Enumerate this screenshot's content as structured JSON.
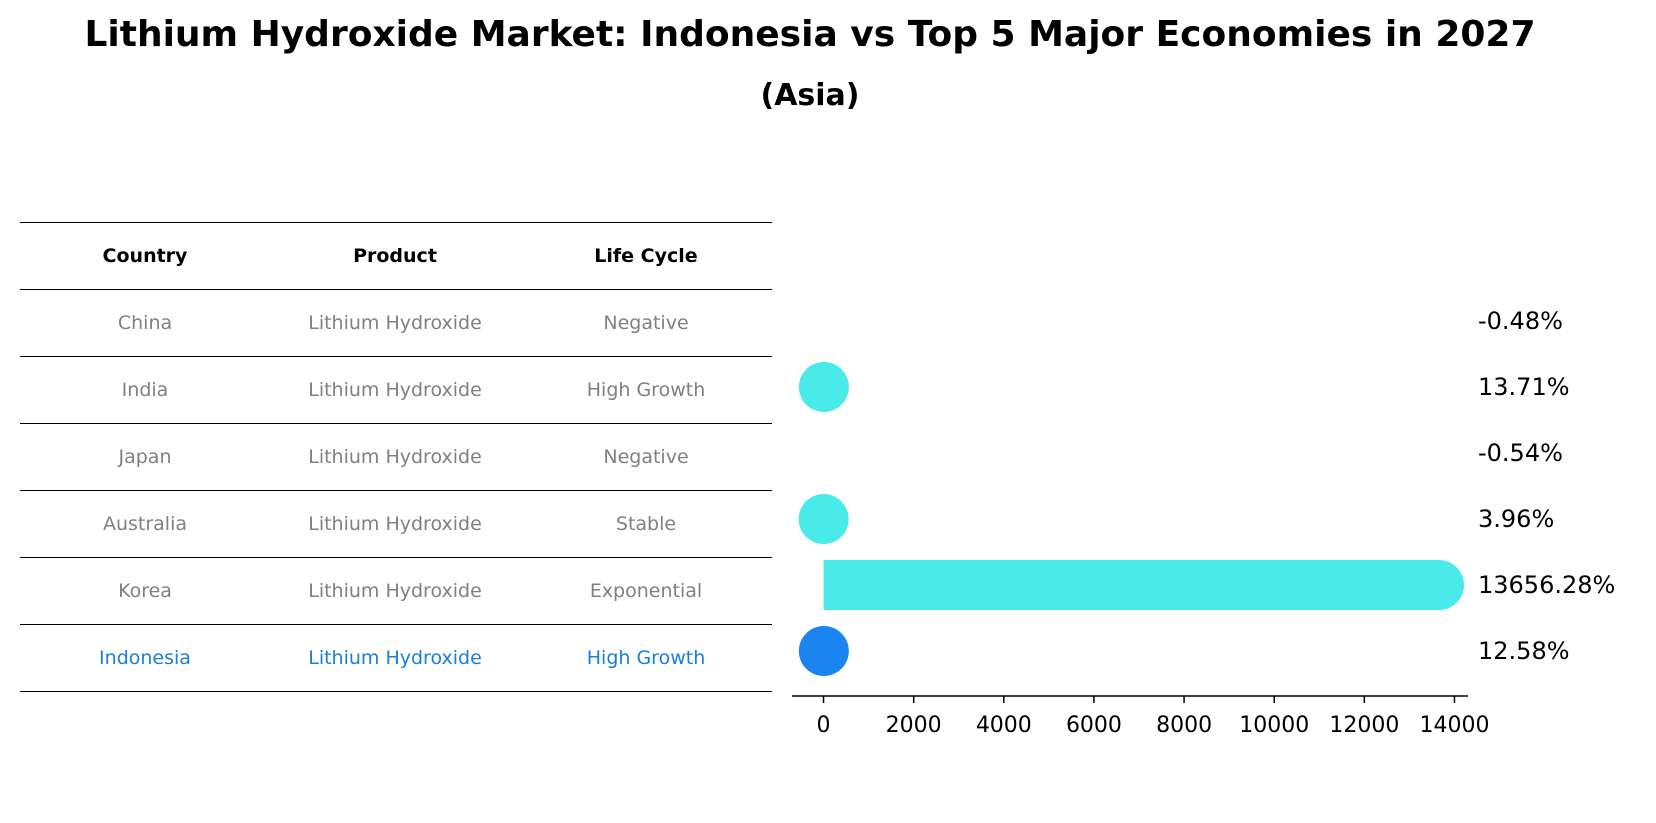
{
  "title": "Lithium Hydroxide Market: Indonesia vs Top 5 Major Economies in 2027",
  "subtitle": "(Asia)",
  "table": {
    "headers": [
      "Country",
      "Product",
      "Life Cycle"
    ],
    "rows": [
      [
        "China",
        "Lithium Hydroxide",
        "Negative"
      ],
      [
        "India",
        "Lithium Hydroxide",
        "High Growth"
      ],
      [
        "Japan",
        "Lithium Hydroxide",
        "Negative"
      ],
      [
        "Australia",
        "Lithium Hydroxide",
        "Stable"
      ],
      [
        "Korea",
        "Lithium Hydroxide",
        "Exponential"
      ],
      [
        "Indonesia",
        "Lithium Hydroxide",
        "High Growth"
      ]
    ],
    "highlight_row": 5
  },
  "colors": {
    "bar": "#4aeaea",
    "highlight": "#1a84f0",
    "table_text": "#808080",
    "highlight_text": "#1a7fd6"
  },
  "chart_data": {
    "type": "bar",
    "orientation": "horizontal",
    "categories": [
      "China",
      "India",
      "Japan",
      "Australia",
      "Korea",
      "Indonesia"
    ],
    "values": [
      -0.48,
      13.71,
      -0.54,
      3.96,
      13656.28,
      12.58
    ],
    "value_labels": [
      "-0.48%",
      "13.71%",
      "-0.54%",
      "3.96%",
      "13656.28%",
      "12.58%"
    ],
    "xticks": [
      0,
      2000,
      4000,
      6000,
      8000,
      10000,
      12000,
      14000
    ],
    "xlim": [
      -700,
      14300
    ],
    "grid": false
  }
}
